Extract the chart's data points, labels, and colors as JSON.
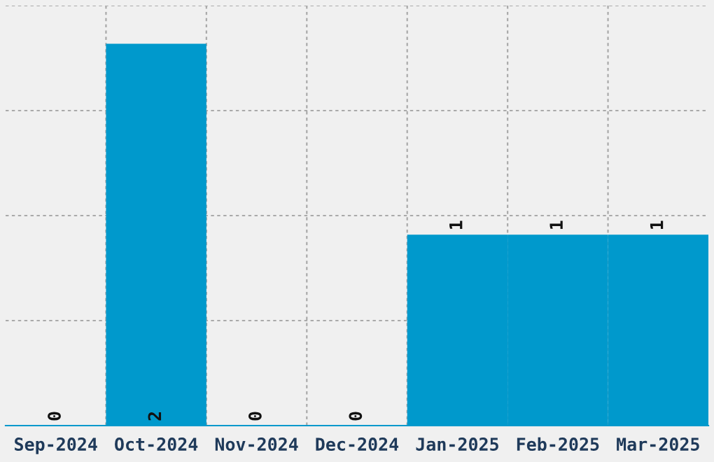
{
  "chart_data": {
    "type": "bar",
    "categories": [
      "Sep-2024",
      "Oct-2024",
      "Nov-2024",
      "Dec-2024",
      "Jan-2025",
      "Feb-2025",
      "Mar-2025"
    ],
    "values": [
      0,
      2,
      0,
      0,
      1,
      1,
      1
    ],
    "color": "#0099cc",
    "ylim": [
      0,
      2.2
    ],
    "yticks": [
      {
        "value": 0,
        "label": null
      },
      {
        "value": 0.55,
        "label": null
      },
      {
        "value": 1.1,
        "label": null
      },
      {
        "value": 1.65,
        "label": null
      },
      {
        "value": 2.2,
        "label": null
      }
    ],
    "tick_labels": "x",
    "grid": true,
    "data_labels": true
  }
}
